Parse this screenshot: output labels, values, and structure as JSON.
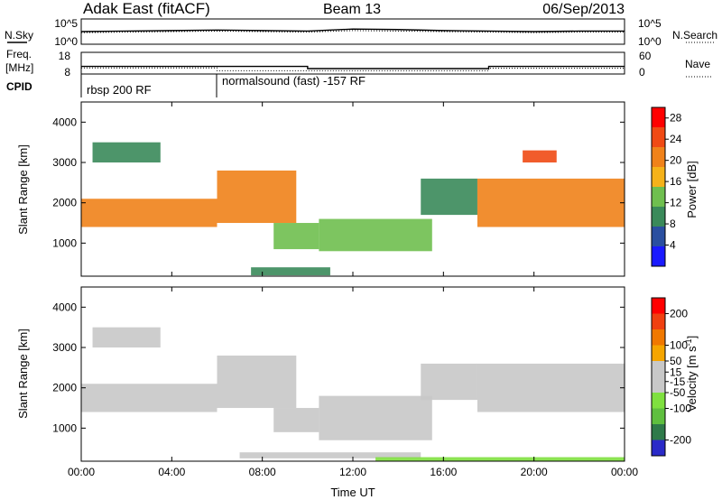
{
  "header": {
    "station": "Adak East (fitACF)",
    "beam": "Beam 13",
    "date": "06/Sep/2013"
  },
  "noise_panel": {
    "left_label": "N.Sky",
    "right_label": "N.Search",
    "left_ticks": [
      "10^5",
      "10^0"
    ],
    "right_ticks": [
      "10^5",
      "10^0"
    ]
  },
  "freq_panel": {
    "left_label_1": "Freq.",
    "left_label_2": "[MHz]",
    "right_label": "Nave",
    "left_ticks": [
      "18",
      "8"
    ],
    "right_ticks": [
      "60",
      "0"
    ]
  },
  "cpid_panel": {
    "label": "CPID",
    "segments": [
      "rbsp 200 RF",
      "normalsound (fast) -157 RF"
    ]
  },
  "colors": {
    "power": [
      "#1a1aff",
      "#2a4fa0",
      "#3a8a5a",
      "#6fbf4f",
      "#f5b21a",
      "#f0821a",
      "#f04a14",
      "#ff0000"
    ],
    "velocity": [
      "#2a2ac8",
      "#2f7a4a",
      "#5fbf3f",
      "#7fe03f",
      "#c8c8c8",
      "#c8c8c8",
      "#f5a500",
      "#f07800",
      "#f04010",
      "#ff0000"
    ]
  },
  "chart_data": [
    {
      "type": "line",
      "title": "N.Sky / N.Search",
      "x": [
        0,
        2,
        4,
        6,
        8,
        10,
        12,
        14,
        16,
        18,
        20,
        22,
        24
      ],
      "series": [
        {
          "name": "N.Sky",
          "values": [
            2.5,
            2.6,
            2.7,
            2.8,
            2.7,
            2.6,
            3.0,
            2.9,
            2.7,
            2.6,
            2.5,
            2.6,
            2.6
          ]
        },
        {
          "name": "N.Search",
          "values": [
            2.3,
            2.4,
            2.5,
            2.6,
            2.5,
            2.4,
            2.7,
            2.6,
            2.5,
            2.4,
            2.3,
            2.4,
            2.4
          ]
        }
      ],
      "ylim": [
        0,
        5
      ]
    },
    {
      "type": "line",
      "title": "Freq. [MHz] / Nave",
      "x": [
        0,
        6,
        6,
        10,
        10,
        18,
        18,
        24
      ],
      "series": [
        {
          "name": "Freq.",
          "values": [
            11.5,
            11.5,
            11.5,
            11.5,
            10.5,
            10.5,
            11.5,
            11.5
          ]
        },
        {
          "name": "Nave",
          "values": [
            17,
            17,
            9,
            9,
            9,
            9,
            16,
            16
          ]
        }
      ],
      "ylim": [
        8,
        18
      ]
    },
    {
      "type": "heatmap",
      "title": "Power",
      "xlabel": "",
      "ylabel": "Slant Range [km]",
      "xlim": [
        0,
        24
      ],
      "ylim": [
        180,
        4500
      ],
      "xticks": [
        "00:00",
        "04:00",
        "08:00",
        "12:00",
        "16:00",
        "20:00",
        "00:00"
      ],
      "yticks": [
        1000,
        2000,
        3000,
        4000
      ],
      "colorbar": {
        "label": "Power [dB]",
        "ticks": [
          4,
          8,
          12,
          16,
          20,
          24,
          28
        ],
        "range": [
          0,
          30
        ]
      },
      "bands": [
        {
          "t0": 0.0,
          "t1": 6.0,
          "r0": 1400,
          "r1": 2100,
          "level": 22
        },
        {
          "t0": 6.0,
          "t1": 9.5,
          "r0": 1500,
          "r1": 2800,
          "level": 22
        },
        {
          "t0": 0.5,
          "t1": 3.5,
          "r0": 3000,
          "r1": 3500,
          "level": 10
        },
        {
          "t0": 8.5,
          "t1": 10.5,
          "r0": 850,
          "r1": 1500,
          "level": 12
        },
        {
          "t0": 10.5,
          "t1": 15.5,
          "r0": 800,
          "r1": 1600,
          "level": 14
        },
        {
          "t0": 15.0,
          "t1": 17.5,
          "r0": 1700,
          "r1": 2600,
          "level": 10
        },
        {
          "t0": 17.5,
          "t1": 24.0,
          "r0": 1400,
          "r1": 2600,
          "level": 22
        },
        {
          "t0": 7.5,
          "t1": 11.0,
          "r0": 200,
          "r1": 400,
          "level": 8
        },
        {
          "t0": 19.5,
          "t1": 21.0,
          "r0": 3000,
          "r1": 3300,
          "level": 24
        }
      ]
    },
    {
      "type": "heatmap",
      "title": "Velocity",
      "xlabel": "Time UT",
      "ylabel": "Slant Range [km]",
      "xlim": [
        0,
        24
      ],
      "ylim": [
        180,
        4500
      ],
      "xticks": [
        "00:00",
        "04:00",
        "08:00",
        "12:00",
        "16:00",
        "20:00",
        "00:00"
      ],
      "yticks": [
        1000,
        2000,
        3000,
        4000
      ],
      "colorbar": {
        "label": "Velocity [m s^-1]",
        "ticks": [
          200,
          100,
          50,
          15,
          -15,
          -50,
          -100,
          -200
        ],
        "range": [
          -250,
          250
        ]
      },
      "bands": [
        {
          "t0": 0.0,
          "t1": 6.0,
          "r0": 1400,
          "r1": 2100,
          "level": 0
        },
        {
          "t0": 6.0,
          "t1": 9.5,
          "r0": 1500,
          "r1": 2800,
          "level": 0
        },
        {
          "t0": 0.5,
          "t1": 3.5,
          "r0": 3000,
          "r1": 3500,
          "level": 0
        },
        {
          "t0": 8.5,
          "t1": 10.5,
          "r0": 900,
          "r1": 1500,
          "level": 30
        },
        {
          "t0": 10.5,
          "t1": 15.5,
          "r0": 700,
          "r1": 1800,
          "level": 30
        },
        {
          "t0": 15.0,
          "t1": 17.5,
          "r0": 1700,
          "r1": 2600,
          "level": 20
        },
        {
          "t0": 17.5,
          "t1": 24.0,
          "r0": 1400,
          "r1": 2600,
          "level": 0
        },
        {
          "t0": 7.0,
          "t1": 15.0,
          "r0": 250,
          "r1": 400,
          "level": 30
        },
        {
          "t0": 13.0,
          "t1": 24.0,
          "r0": 180,
          "r1": 280,
          "level": -60
        }
      ]
    }
  ]
}
